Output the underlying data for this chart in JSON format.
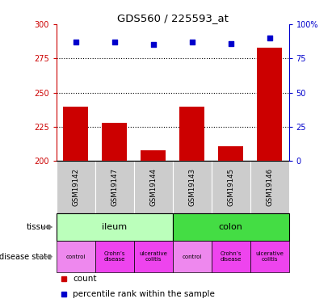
{
  "title": "GDS560 / 225593_at",
  "samples": [
    "GSM19142",
    "GSM19147",
    "GSM19144",
    "GSM19143",
    "GSM19145",
    "GSM19146"
  ],
  "counts": [
    240,
    228,
    208,
    240,
    211,
    283
  ],
  "percentiles": [
    87,
    87,
    85,
    87,
    86,
    90
  ],
  "ylim_left": [
    200,
    300
  ],
  "ylim_right": [
    0,
    100
  ],
  "yticks_left": [
    200,
    225,
    250,
    275,
    300
  ],
  "yticks_right": [
    0,
    25,
    50,
    75,
    100
  ],
  "ytick_labels_right": [
    "0",
    "25",
    "50",
    "75",
    "100%"
  ],
  "bar_color": "#cc0000",
  "scatter_color": "#0000cc",
  "tissue_ileum_color": "#bbffbb",
  "tissue_colon_color": "#44dd44",
  "disease_control_color": "#ee88ee",
  "disease_crohns_color": "#ee44ee",
  "disease_colitis_color": "#ee44ee",
  "legend_count_color": "#cc0000",
  "legend_percentile_color": "#0000cc",
  "background_color": "#ffffff",
  "sample_bg_color": "#cccccc",
  "dotted_lines": [
    225,
    250,
    275
  ]
}
